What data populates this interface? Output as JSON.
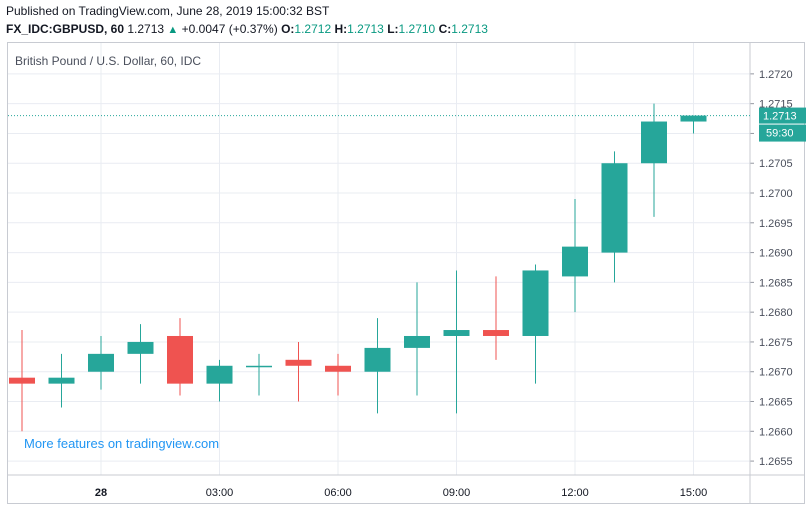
{
  "header": {
    "published": "Published on TradingView.com, June 28, 2019 15:00:32 BST",
    "symbol": "FX_IDC:GBPUSD, 60",
    "last": "1.2713",
    "change": "+0.0047 (+0.37%)",
    "o_label": "O:",
    "o_value": "1.2712",
    "h_label": "H:",
    "h_value": "1.2713",
    "l_label": "L:",
    "l_value": "1.2710",
    "c_label": "C:",
    "c_value": "1.2713"
  },
  "pane_title": "British Pound / U.S. Dollar, 60, IDC",
  "watermark": "More features on tradingview.com",
  "price_label": "1.2713",
  "countdown_label": "59:30",
  "colors": {
    "up": "#26a69a",
    "down": "#ef5350",
    "price_line": "#26a69a",
    "grid": "#e9ecf2"
  },
  "chart_data": {
    "type": "candlestick",
    "title": "British Pound / U.S. Dollar, 60, IDC",
    "ylim": [
      1.2653,
      1.2723
    ],
    "y_ticks": [
      "1.2655",
      "1.2660",
      "1.2665",
      "1.2670",
      "1.2675",
      "1.2680",
      "1.2685",
      "1.2690",
      "1.2695",
      "1.2700",
      "1.2705",
      "1.2710",
      "1.2715",
      "1.2720"
    ],
    "x_ticks": [
      "28",
      "03:00",
      "06:00",
      "09:00",
      "12:00",
      "15:00"
    ],
    "grid": true,
    "candles": [
      {
        "o": 1.2669,
        "h": 1.2677,
        "l": 1.266,
        "c": 1.2668
      },
      {
        "o": 1.2668,
        "h": 1.2673,
        "l": 1.2664,
        "c": 1.2669
      },
      {
        "o": 1.267,
        "h": 1.2676,
        "l": 1.2667,
        "c": 1.2673
      },
      {
        "o": 1.2673,
        "h": 1.2678,
        "l": 1.2668,
        "c": 1.2675
      },
      {
        "o": 1.2676,
        "h": 1.2679,
        "l": 1.2666,
        "c": 1.2668
      },
      {
        "o": 1.2668,
        "h": 1.2672,
        "l": 1.2665,
        "c": 1.2671
      },
      {
        "o": 1.2671,
        "h": 1.2673,
        "l": 1.2666,
        "c": 1.2671
      },
      {
        "o": 1.2672,
        "h": 1.2675,
        "l": 1.2665,
        "c": 1.2671
      },
      {
        "o": 1.2671,
        "h": 1.2673,
        "l": 1.2666,
        "c": 1.267
      },
      {
        "o": 1.267,
        "h": 1.2679,
        "l": 1.2663,
        "c": 1.2674
      },
      {
        "o": 1.2674,
        "h": 1.2685,
        "l": 1.2666,
        "c": 1.2676
      },
      {
        "o": 1.2676,
        "h": 1.2687,
        "l": 1.2663,
        "c": 1.2677
      },
      {
        "o": 1.2677,
        "h": 1.2686,
        "l": 1.2672,
        "c": 1.2676
      },
      {
        "o": 1.2676,
        "h": 1.2688,
        "l": 1.2668,
        "c": 1.2687
      },
      {
        "o": 1.2686,
        "h": 1.2699,
        "l": 1.268,
        "c": 1.2691
      },
      {
        "o": 1.269,
        "h": 1.2707,
        "l": 1.2685,
        "c": 1.2705
      },
      {
        "o": 1.2705,
        "h": 1.2715,
        "l": 1.2696,
        "c": 1.2712
      },
      {
        "o": 1.2712,
        "h": 1.2713,
        "l": 1.271,
        "c": 1.2713
      }
    ]
  }
}
